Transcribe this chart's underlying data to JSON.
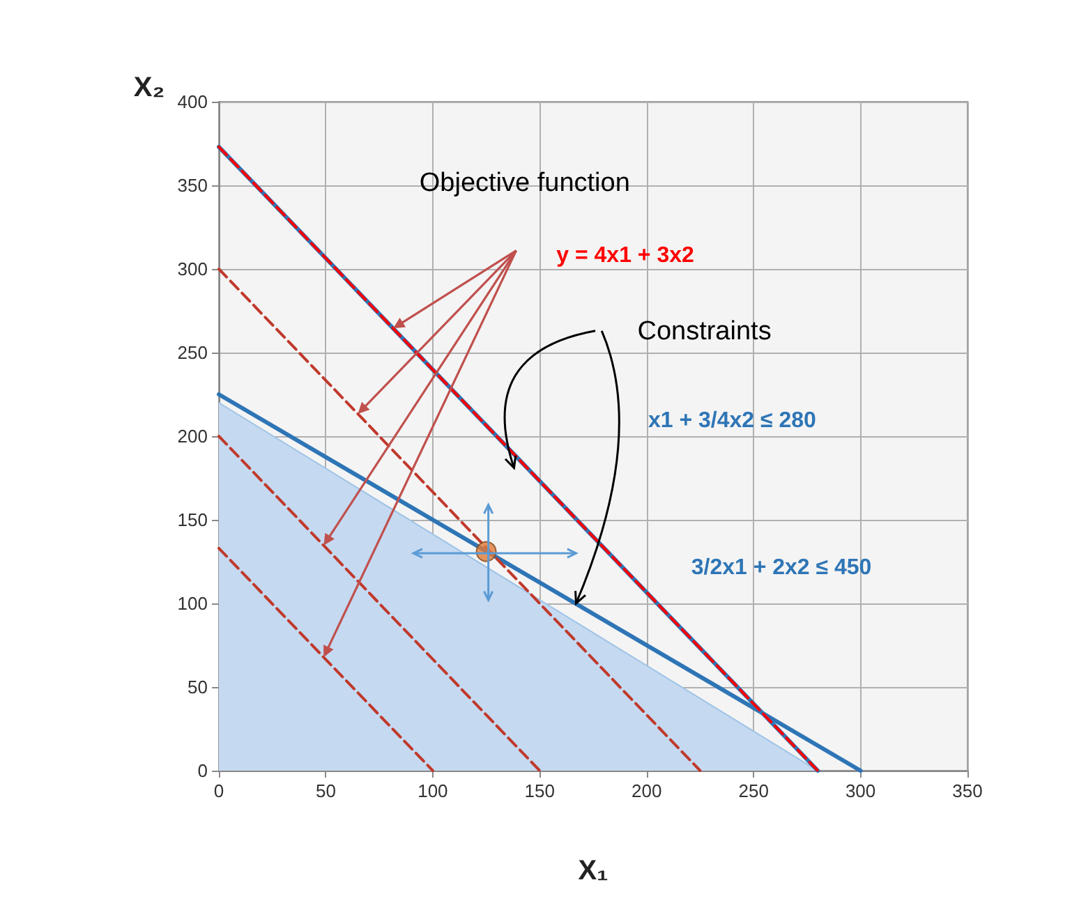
{
  "chart_data": {
    "type": "line",
    "xlabel": "X₁",
    "ylabel": "X₂",
    "xlim": [
      0,
      350
    ],
    "xticks": [
      0,
      50,
      100,
      150,
      200,
      250,
      300,
      350
    ],
    "ylim": [
      0,
      400
    ],
    "yticks": [
      0,
      50,
      100,
      150,
      200,
      250,
      300,
      350,
      400
    ],
    "grid": true,
    "legend": false,
    "marker": "none",
    "series": [
      {
        "type": "area",
        "color": "#c5d9f1",
        "x": [
          0,
          280
        ],
        "values": [
          220,
          0
        ]
      },
      {
        "color": "#2e75b6",
        "x": [
          0,
          280
        ],
        "values": [
          373,
          0
        ],
        "line_style": "solid"
      },
      {
        "color": "#2e75b6",
        "x": [
          0,
          300
        ],
        "values": [
          225,
          0
        ],
        "line_style": "solid"
      },
      {
        "name": "y = 4x1 + 3x2",
        "color": "#ff0000",
        "x": [
          0,
          280
        ],
        "values": [
          373,
          0
        ],
        "line_style": "dashed"
      },
      {
        "color": "#c0392b",
        "x": [
          0,
          225
        ],
        "values": [
          300,
          0
        ],
        "line_style": "dashed"
      },
      {
        "color": "#c0392b",
        "x": [
          0,
          150
        ],
        "values": [
          200,
          0
        ],
        "line_style": "dashed"
      },
      {
        "color": "#c0392b",
        "x": [
          0,
          100
        ],
        "values": [
          133,
          0
        ],
        "line_style": "dashed"
      },
      {
        "type": "scatter",
        "color": "#e07b39",
        "x": [
          125
        ],
        "values": [
          131
        ],
        "marker": "circle"
      }
    ],
    "annotations": [
      "Objective function",
      "Constraints",
      "x1 + 3/4x2 ≤ 280",
      "3/2x1 + 2x2 ≤ 450"
    ]
  }
}
